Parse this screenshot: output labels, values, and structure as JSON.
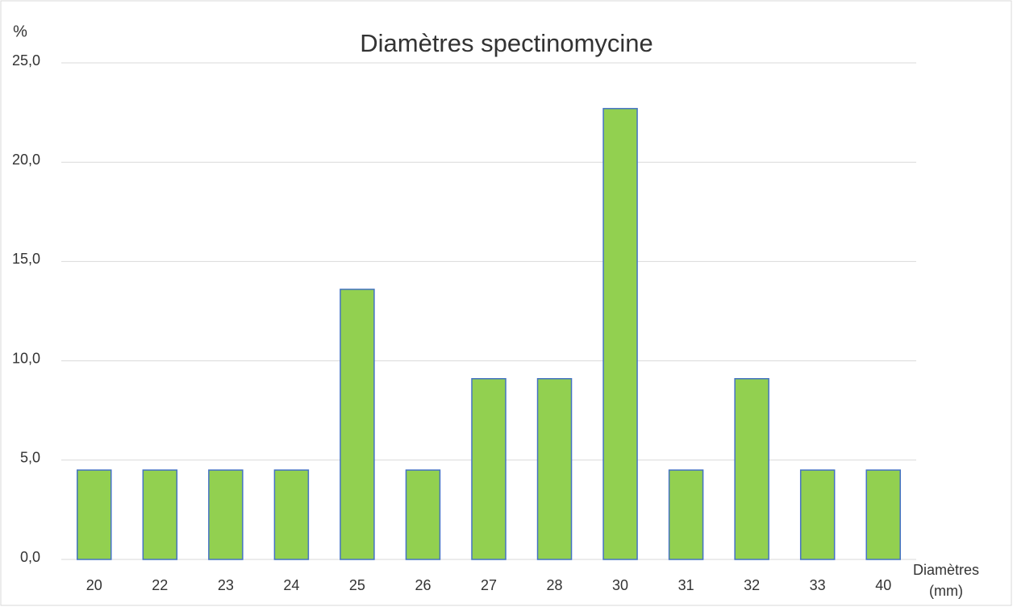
{
  "chart_data": {
    "type": "bar",
    "title": "Diamètres spectinomycine",
    "y_label": "%",
    "x_label": "Diamètres (mm)",
    "categories": [
      "20",
      "22",
      "23",
      "24",
      "25",
      "26",
      "27",
      "28",
      "30",
      "31",
      "32",
      "33",
      "40"
    ],
    "values": [
      4.5,
      4.5,
      4.5,
      4.5,
      13.6,
      4.5,
      9.1,
      9.1,
      22.7,
      4.5,
      9.1,
      4.5,
      4.5
    ],
    "color": "#92d050",
    "edge_color": "#4472c4",
    "ylim": [
      0,
      25
    ],
    "yticks": [
      {
        "value": 0,
        "label": "0,0"
      },
      {
        "value": 5,
        "label": "5,0"
      },
      {
        "value": 10,
        "label": "10,0"
      },
      {
        "value": 15,
        "label": "15,0"
      },
      {
        "value": 20,
        "label": "20,0"
      },
      {
        "value": 25,
        "label": "25,0"
      }
    ],
    "grid": true
  }
}
